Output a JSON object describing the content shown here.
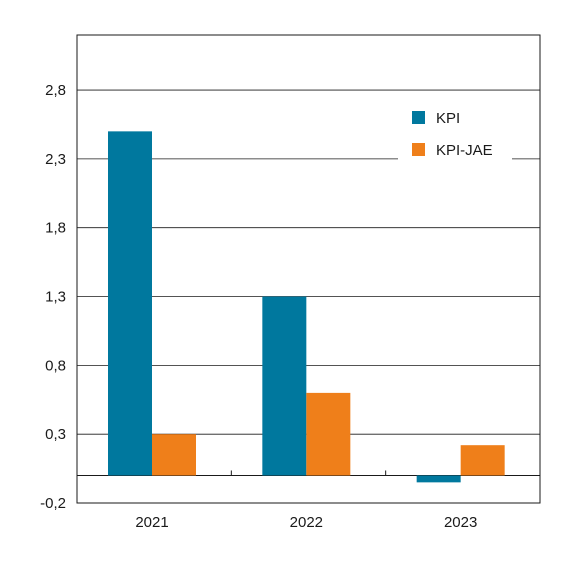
{
  "chart_data": {
    "type": "bar",
    "title": "",
    "xlabel": "",
    "ylabel": "",
    "categories": [
      "2021",
      "2022",
      "2023"
    ],
    "series": [
      {
        "name": "KPI",
        "values": [
          2.5,
          1.3,
          -0.05
        ],
        "color": "#00789e"
      },
      {
        "name": "KPI-JAE",
        "values": [
          0.3,
          0.6,
          0.22
        ],
        "color": "#ef7f1a"
      }
    ],
    "yticks": [
      "2,8",
      "2,3",
      "1,8",
      "1,3",
      "0,8",
      "0,3",
      "-0,2"
    ],
    "ytick_values": [
      2.8,
      2.3,
      1.8,
      1.3,
      0.8,
      0.3,
      -0.2
    ],
    "ylim": [
      -0.2,
      3.2
    ],
    "grid": true,
    "legend_position": "top-right"
  }
}
